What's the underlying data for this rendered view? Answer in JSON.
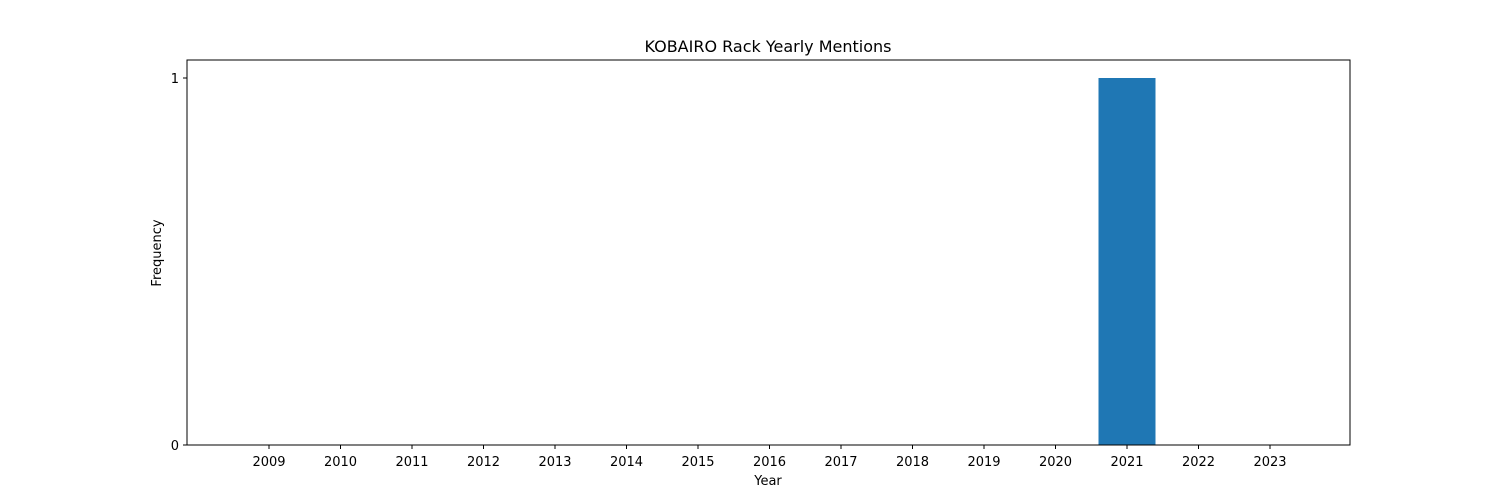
{
  "chart_data": {
    "type": "bar",
    "title": "KOBAIRO Rack Yearly Mentions",
    "xlabel": "Year",
    "ylabel": "Frequency",
    "categories": [
      "2009",
      "2010",
      "2011",
      "2012",
      "2013",
      "2014",
      "2015",
      "2016",
      "2017",
      "2018",
      "2019",
      "2020",
      "2021",
      "2022",
      "2023"
    ],
    "values": [
      0,
      0,
      0,
      0,
      0,
      0,
      0,
      0,
      0,
      0,
      0,
      0,
      1,
      0,
      0
    ],
    "ylim": [
      0,
      1
    ],
    "yticks": [
      "0",
      "1"
    ],
    "grid": false,
    "bar_color": "#1f77b4"
  }
}
